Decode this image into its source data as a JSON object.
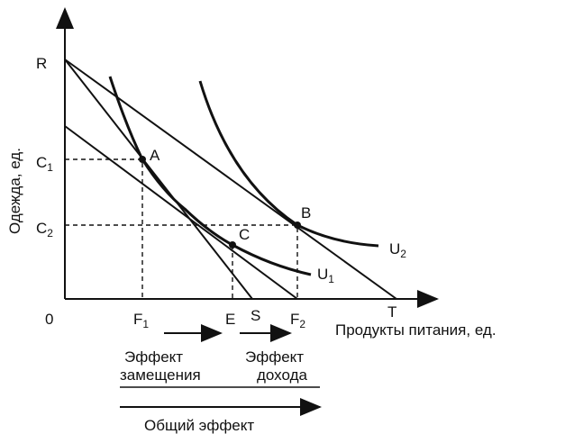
{
  "diagram": {
    "axes": {
      "y_label": "Одежда, ед.",
      "x_label": "Продукты питания, ед.",
      "origin": "0"
    },
    "y_points": {
      "R": "R",
      "C1": {
        "letter": "C",
        "sub": "1"
      },
      "C2": {
        "letter": "C",
        "sub": "2"
      }
    },
    "x_points": {
      "F1": {
        "letter": "F",
        "sub": "1"
      },
      "E": "E",
      "S": "S",
      "F2": {
        "letter": "F",
        "sub": "2"
      },
      "T": "T"
    },
    "points": {
      "A": "A",
      "B": "B",
      "C": "C"
    },
    "curves": {
      "U1": {
        "letter": "U",
        "sub": "1"
      },
      "U2": {
        "letter": "U",
        "sub": "2"
      }
    },
    "effects": {
      "substitution": [
        "Эффект",
        "замещения"
      ],
      "income": [
        "Эффект",
        "дохода"
      ],
      "total": "Общий эффект"
    }
  }
}
